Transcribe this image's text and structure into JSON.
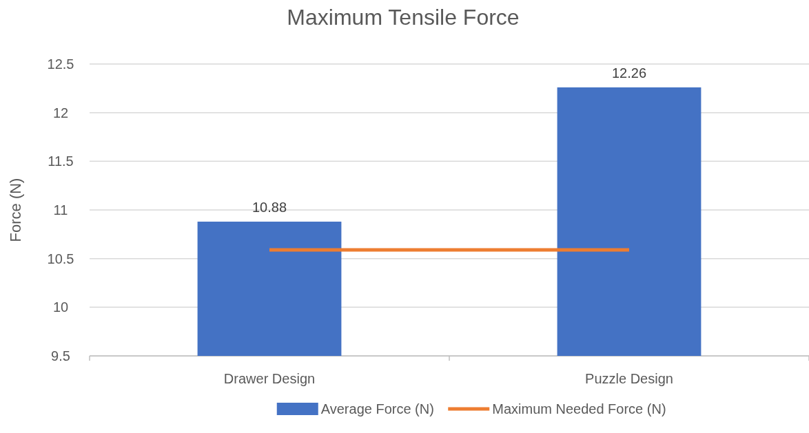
{
  "chart_data": {
    "type": "bar",
    "title": "Maximum Tensile Force",
    "ylabel": "Force (N)",
    "categories": [
      "Drawer Design",
      "Puzzle Design"
    ],
    "series": [
      {
        "name": "Average Force (N)",
        "color": "#4472c4",
        "values": [
          10.88,
          12.26
        ],
        "value_labels": [
          "10.88",
          "12.26"
        ]
      },
      {
        "name": "Maximum Needed Force (N)",
        "type": "line",
        "color": "#ed7d31",
        "values": [
          10.59,
          10.59
        ]
      }
    ],
    "ylim": [
      9.5,
      12.5
    ],
    "yticks": [
      9.5,
      10,
      10.5,
      11,
      11.5,
      12,
      12.5
    ],
    "grid": "y",
    "legend": "bottom",
    "marker": "none",
    "line_style": "solid"
  }
}
